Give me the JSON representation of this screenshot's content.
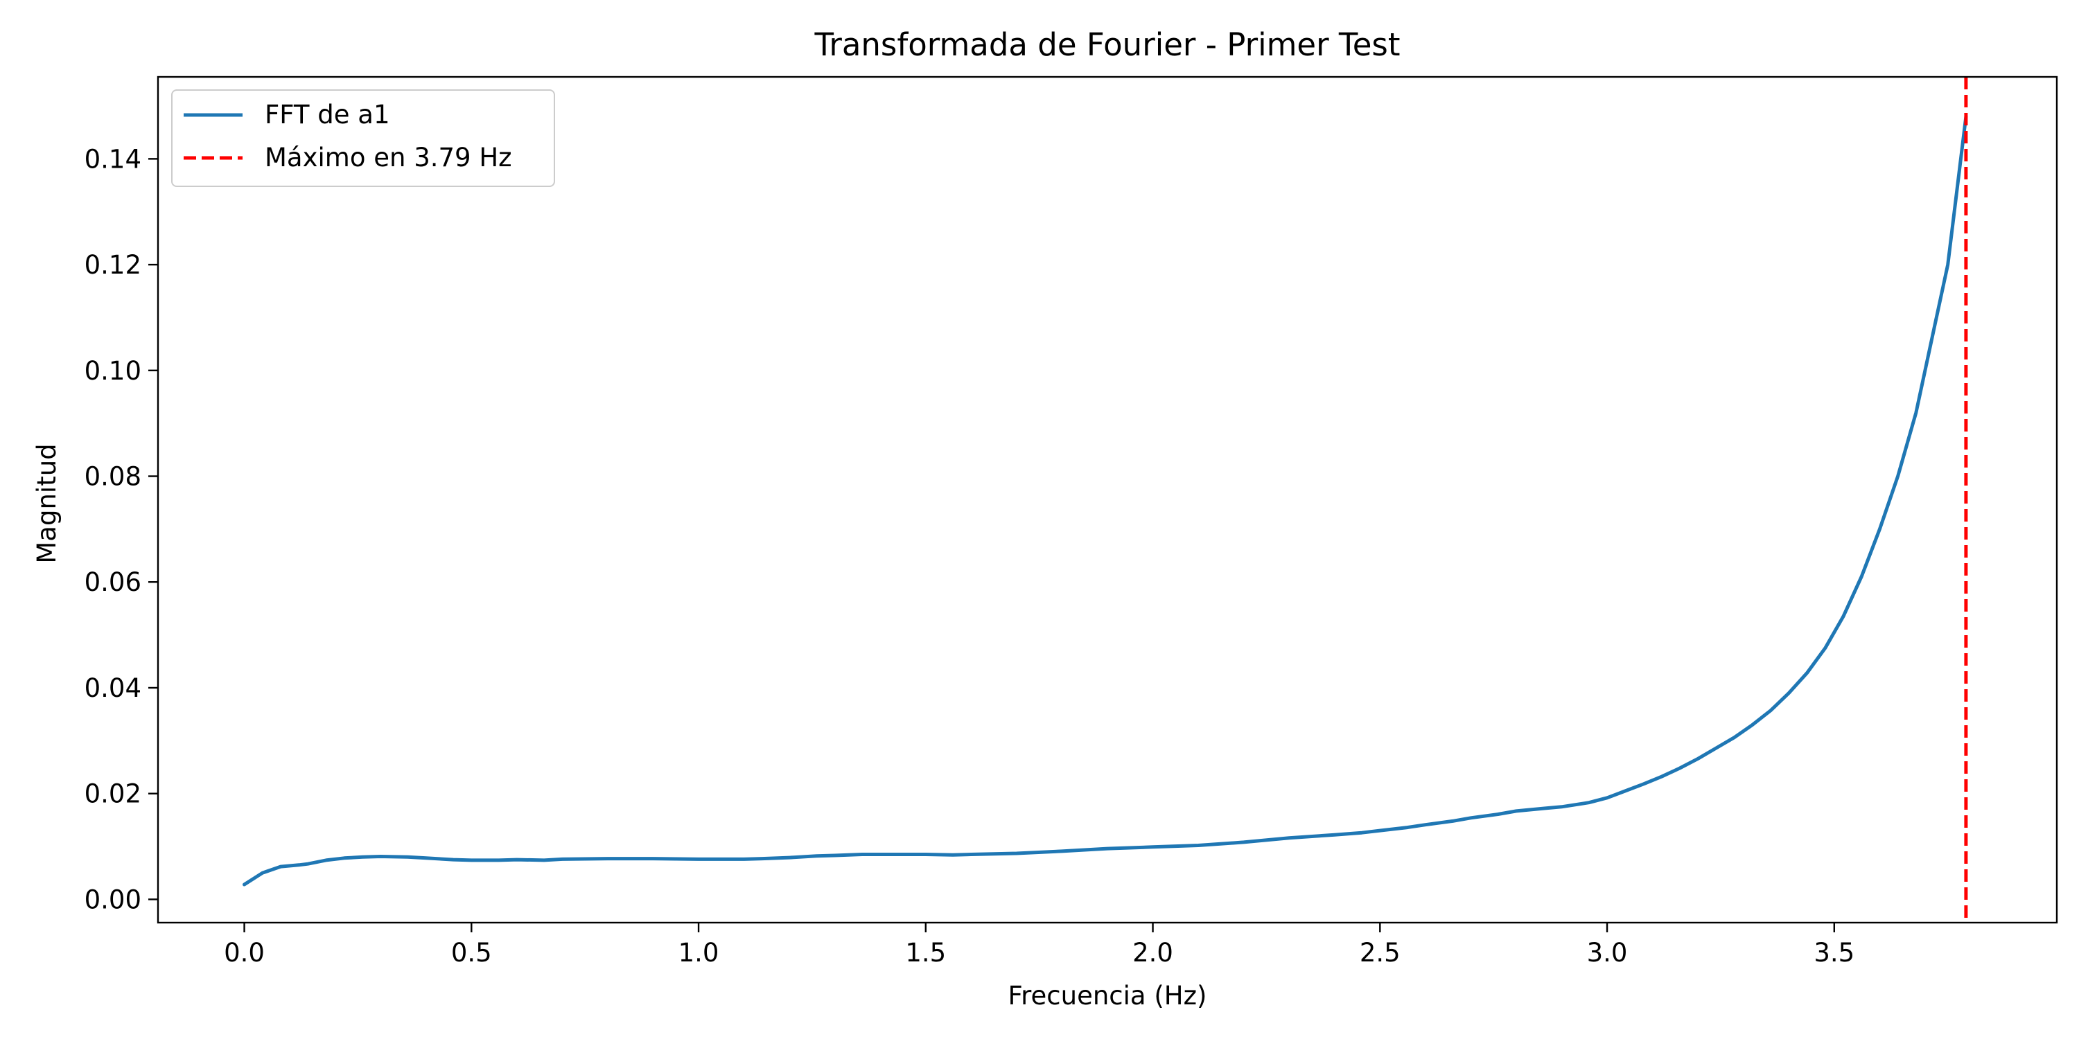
{
  "chart_data": {
    "type": "line",
    "title": "Transformada de Fourier - Primer Test",
    "xlabel": "Frecuencia (Hz)",
    "ylabel": "Magnitud",
    "xlim": [
      -0.19,
      3.99
    ],
    "ylim": [
      -0.0044,
      0.1555
    ],
    "xticks": [
      0.0,
      0.5,
      1.0,
      1.5,
      2.0,
      2.5,
      3.0,
      3.5
    ],
    "xtick_labels": [
      "0.0",
      "0.5",
      "1.0",
      "1.5",
      "2.0",
      "2.5",
      "3.0",
      "3.5"
    ],
    "yticks": [
      0.0,
      0.02,
      0.04,
      0.06,
      0.08,
      0.1,
      0.12,
      0.14
    ],
    "ytick_labels": [
      "0.00",
      "0.02",
      "0.04",
      "0.06",
      "0.08",
      "0.10",
      "0.12",
      "0.14"
    ],
    "grid": false,
    "legend_position": "top-left",
    "series": [
      {
        "name": "FFT de a1",
        "color": "#1f77b4",
        "style": "solid",
        "x": [
          0.0,
          0.04,
          0.08,
          0.12,
          0.14,
          0.18,
          0.22,
          0.26,
          0.3,
          0.36,
          0.4,
          0.46,
          0.5,
          0.56,
          0.6,
          0.66,
          0.7,
          0.8,
          0.9,
          1.0,
          1.1,
          1.14,
          1.2,
          1.26,
          1.3,
          1.36,
          1.4,
          1.46,
          1.5,
          1.56,
          1.6,
          1.7,
          1.8,
          1.9,
          2.0,
          2.1,
          2.2,
          2.3,
          2.4,
          2.46,
          2.5,
          2.56,
          2.6,
          2.66,
          2.7,
          2.76,
          2.8,
          2.86,
          2.9,
          2.96,
          3.0,
          3.04,
          3.08,
          3.12,
          3.16,
          3.2,
          3.24,
          3.28,
          3.32,
          3.36,
          3.4,
          3.44,
          3.48,
          3.52,
          3.56,
          3.6,
          3.64,
          3.68,
          3.72,
          3.75,
          3.77,
          3.79
        ],
        "y": [
          0.0028,
          0.005,
          0.0062,
          0.0065,
          0.0067,
          0.0074,
          0.0078,
          0.008,
          0.0081,
          0.008,
          0.0078,
          0.0075,
          0.0074,
          0.0074,
          0.0075,
          0.0074,
          0.0076,
          0.0077,
          0.0077,
          0.0076,
          0.0076,
          0.0077,
          0.0079,
          0.0082,
          0.0083,
          0.0085,
          0.0085,
          0.0085,
          0.0085,
          0.0084,
          0.0085,
          0.0087,
          0.0091,
          0.0096,
          0.0099,
          0.0102,
          0.0108,
          0.0116,
          0.0122,
          0.0126,
          0.013,
          0.0136,
          0.0141,
          0.0148,
          0.0154,
          0.0161,
          0.0167,
          0.0172,
          0.0175,
          0.0183,
          0.0192,
          0.0205,
          0.0218,
          0.0232,
          0.0248,
          0.0266,
          0.0286,
          0.0306,
          0.033,
          0.0357,
          0.039,
          0.0428,
          0.0475,
          0.0535,
          0.061,
          0.07,
          0.08,
          0.092,
          0.108,
          0.12,
          0.134,
          0.148
        ]
      },
      {
        "name": "Máximo en 3.79 Hz",
        "color": "#ff0000",
        "style": "dashed",
        "type": "vline",
        "x_value": 3.79
      }
    ]
  }
}
